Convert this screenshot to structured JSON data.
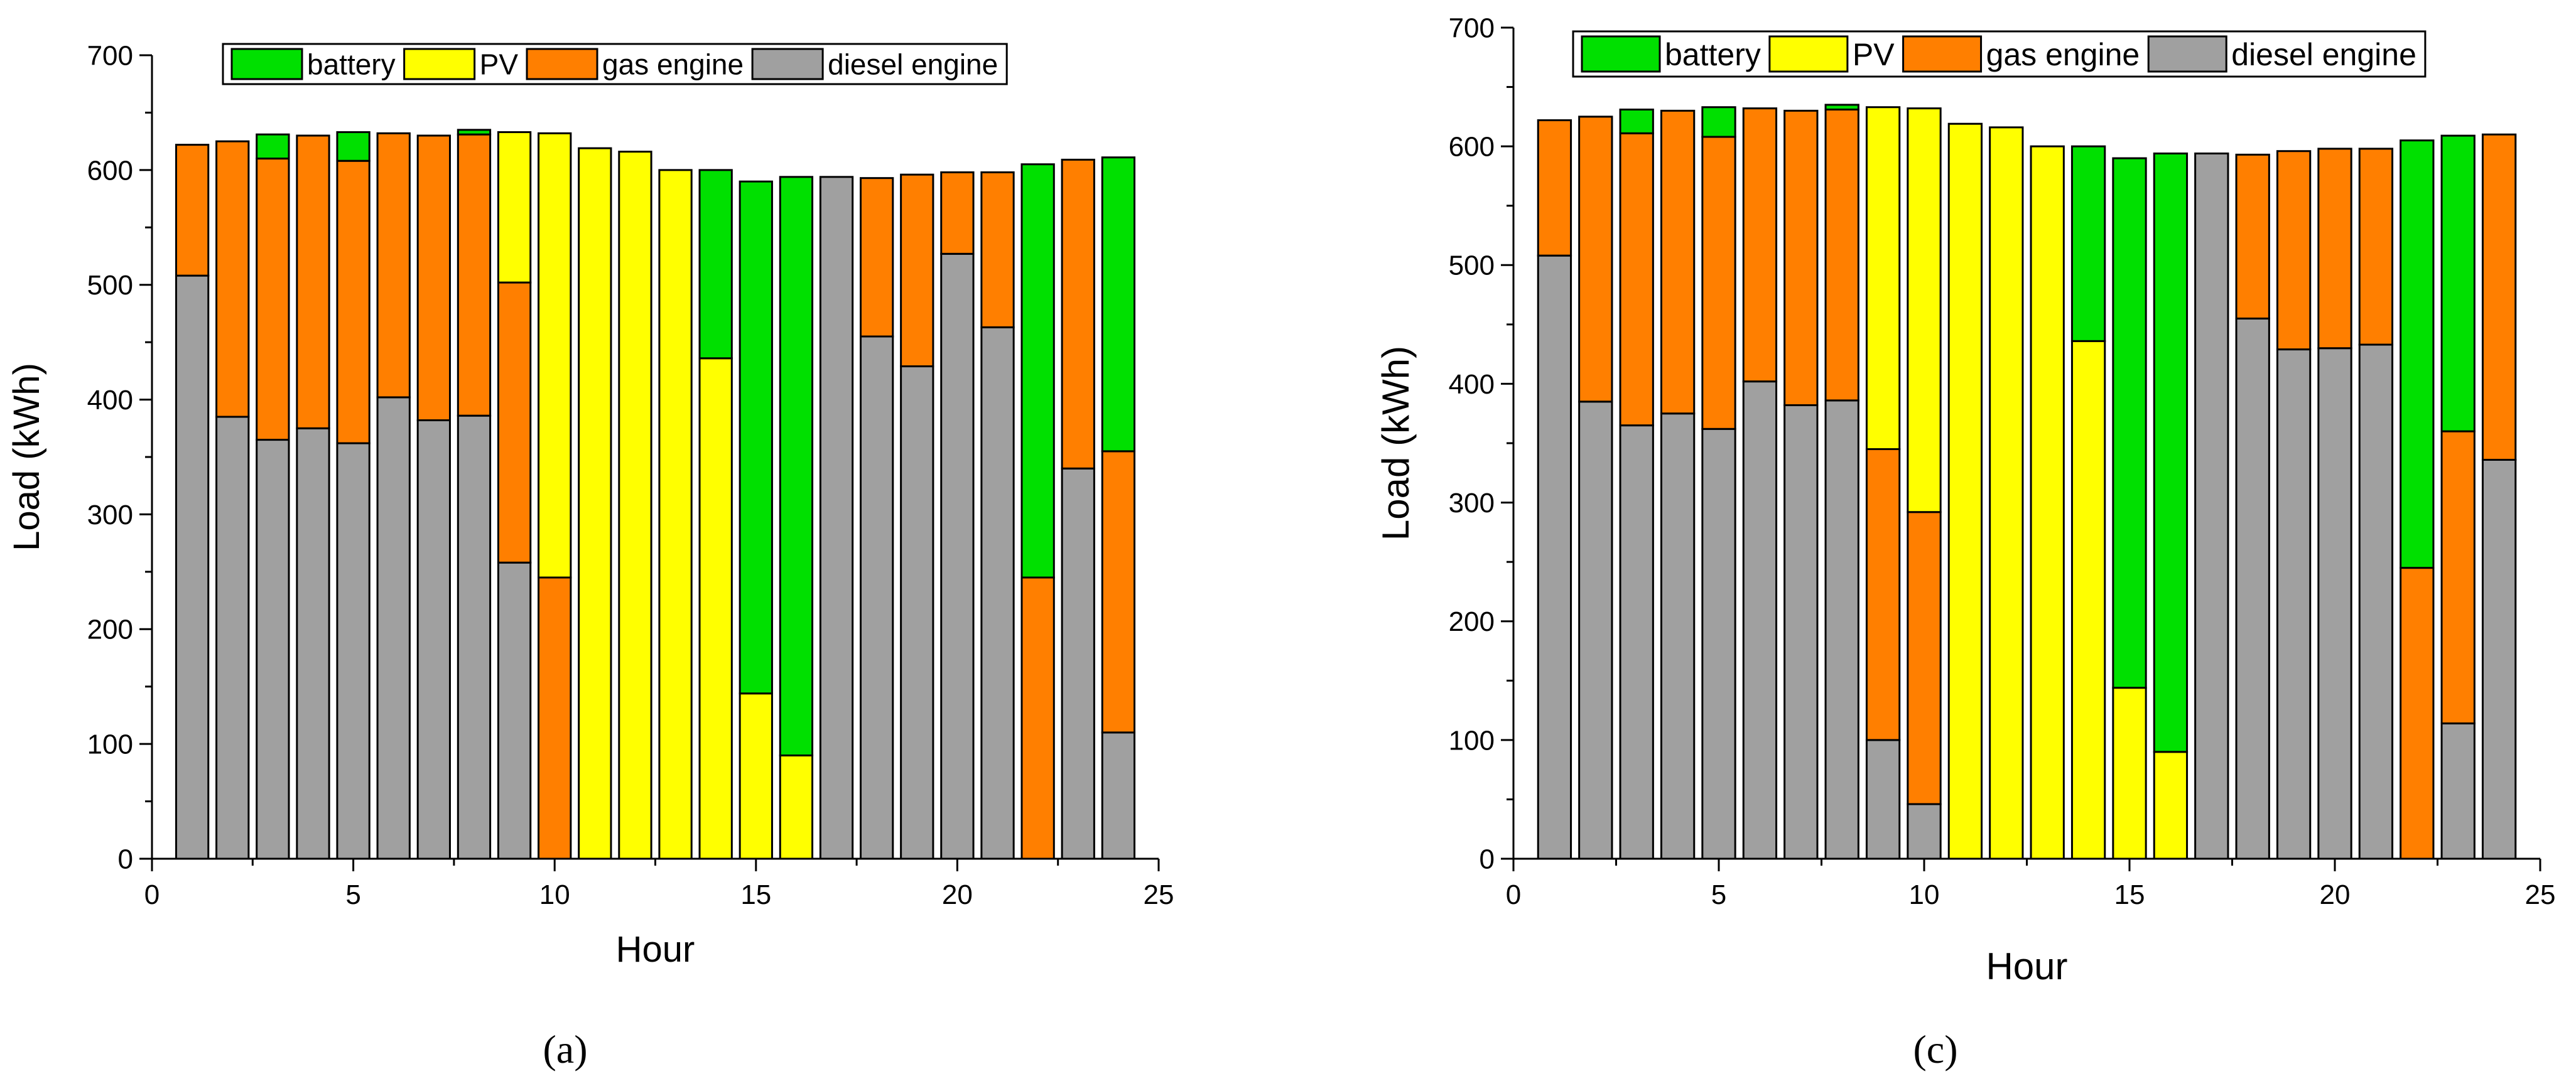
{
  "legend": [
    {
      "key": "battery",
      "label": "battery",
      "color": "#00e000"
    },
    {
      "key": "pv",
      "label": "PV",
      "color": "#ffff00"
    },
    {
      "key": "gas",
      "label": "gas engine",
      "color": "#ff7f00"
    },
    {
      "key": "diesel",
      "label": "diesel engine",
      "color": "#a0a0a0"
    }
  ],
  "stack_order": [
    "diesel",
    "gas",
    "pv",
    "battery"
  ],
  "chart_data": [
    {
      "type": "bar",
      "stacked": true,
      "panel_label": "(a)",
      "xlabel": "Hour",
      "ylabel": "Load (kWh)",
      "xlim": [
        0,
        25
      ],
      "ylim": [
        0,
        700
      ],
      "xticks": [
        0,
        5,
        10,
        15,
        20,
        25
      ],
      "yticks": [
        0,
        100,
        200,
        300,
        400,
        500,
        600,
        700
      ],
      "categories": [
        1,
        2,
        3,
        4,
        5,
        6,
        7,
        8,
        9,
        10,
        11,
        12,
        13,
        14,
        15,
        16,
        17,
        18,
        19,
        20,
        21,
        22,
        23,
        24
      ],
      "series": [
        {
          "name": "diesel",
          "values": [
            508,
            385,
            365,
            375,
            362,
            402,
            382,
            386,
            258,
            0,
            0,
            0,
            0,
            0,
            0,
            0,
            594,
            455,
            429,
            527,
            463,
            0,
            340,
            110
          ]
        },
        {
          "name": "gas",
          "values": [
            114,
            240,
            245,
            255,
            246,
            230,
            248,
            245,
            244,
            245,
            0,
            0,
            0,
            0,
            0,
            0,
            0,
            138,
            167,
            71,
            135,
            245,
            269,
            245
          ]
        },
        {
          "name": "pv",
          "values": [
            0,
            0,
            0,
            0,
            0,
            0,
            0,
            0,
            131,
            387,
            619,
            616,
            600,
            436,
            144,
            90,
            0,
            0,
            0,
            0,
            0,
            0,
            0,
            0
          ]
        },
        {
          "name": "battery",
          "values": [
            0,
            0,
            21,
            0,
            25,
            0,
            0,
            4,
            0,
            0,
            0,
            0,
            0,
            164,
            446,
            504,
            0,
            0,
            0,
            0,
            0,
            360,
            0,
            256
          ]
        }
      ]
    },
    {
      "type": "bar",
      "stacked": true,
      "panel_label": "(c)",
      "xlabel": "Hour",
      "ylabel": "Load (kWh)",
      "xlim": [
        0,
        25
      ],
      "ylim": [
        0,
        700
      ],
      "xticks": [
        0,
        5,
        10,
        15,
        20,
        25
      ],
      "yticks": [
        0,
        100,
        200,
        300,
        400,
        500,
        600,
        700
      ],
      "categories": [
        1,
        2,
        3,
        4,
        5,
        6,
        7,
        8,
        9,
        10,
        11,
        12,
        13,
        14,
        15,
        16,
        17,
        18,
        19,
        20,
        21,
        22,
        23,
        24
      ],
      "series": [
        {
          "name": "diesel",
          "values": [
            508,
            385,
            365,
            375,
            362,
            402,
            382,
            386,
            100,
            46,
            0,
            0,
            0,
            0,
            0,
            0,
            594,
            455,
            429,
            430,
            433,
            0,
            114,
            336
          ]
        },
        {
          "name": "gas",
          "values": [
            114,
            240,
            246,
            255,
            246,
            230,
            248,
            245,
            245,
            246,
            0,
            0,
            0,
            0,
            0,
            0,
            0,
            138,
            167,
            168,
            165,
            245,
            246,
            274
          ]
        },
        {
          "name": "pv",
          "values": [
            0,
            0,
            0,
            0,
            0,
            0,
            0,
            0,
            288,
            340,
            619,
            616,
            600,
            436,
            144,
            90,
            0,
            0,
            0,
            0,
            0,
            0,
            0,
            0
          ]
        },
        {
          "name": "battery",
          "values": [
            0,
            0,
            20,
            0,
            25,
            0,
            0,
            4,
            0,
            0,
            0,
            0,
            0,
            164,
            446,
            504,
            0,
            0,
            0,
            0,
            0,
            360,
            249,
            0
          ]
        }
      ]
    }
  ]
}
